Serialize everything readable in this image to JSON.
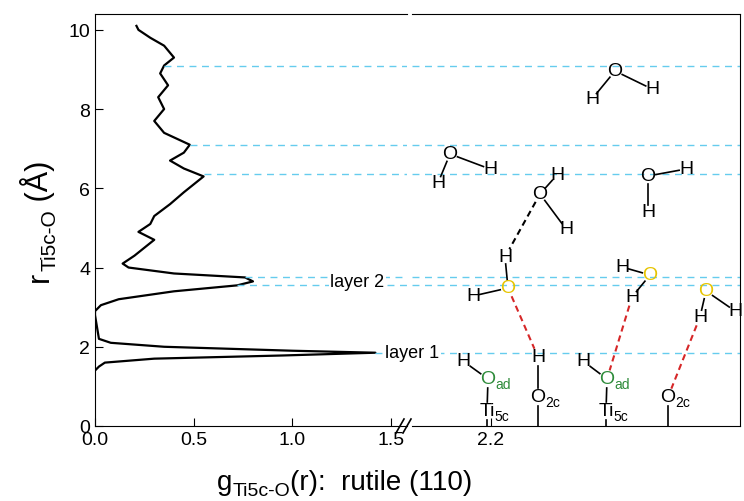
{
  "chart_data": [
    {
      "type": "line",
      "x": [
        0.0,
        0.02,
        0.05,
        0.3,
        0.95,
        1.42,
        1.0,
        0.35,
        0.08,
        0.02,
        0.01,
        0.0,
        0.0,
        0.03,
        0.12,
        0.4,
        0.72,
        0.8,
        0.76,
        0.4,
        0.17,
        0.14,
        0.2,
        0.25,
        0.3,
        0.22,
        0.28,
        0.3,
        0.38,
        0.45,
        0.55,
        0.45,
        0.38,
        0.45,
        0.48,
        0.35,
        0.3,
        0.35,
        0.32,
        0.37,
        0.33,
        0.35,
        0.4,
        0.35,
        0.28,
        0.22,
        0.21
      ],
      "values": [
        1.4,
        1.5,
        1.6,
        1.7,
        1.78,
        1.85,
        1.9,
        2.0,
        2.1,
        2.2,
        2.5,
        2.8,
        2.9,
        3.05,
        3.2,
        3.4,
        3.55,
        3.65,
        3.75,
        3.85,
        4.0,
        4.1,
        4.3,
        4.5,
        4.7,
        4.9,
        5.1,
        5.3,
        5.6,
        5.9,
        6.3,
        6.5,
        6.7,
        6.9,
        7.1,
        7.4,
        7.7,
        8.0,
        8.3,
        8.6,
        8.9,
        9.1,
        9.3,
        9.6,
        9.8,
        10.0,
        10.1
      ],
      "color": "#000000",
      "xlim": [
        0,
        1.58
      ],
      "xticks": [
        0.0,
        0.5,
        1.0,
        1.5
      ],
      "ylim": [
        0,
        10.4
      ],
      "yticks": [
        0,
        2,
        4,
        6,
        8,
        10
      ],
      "x_label": {
        "main": "g",
        "sub": "Ti5c-O",
        "rest": "(r):  rutile (110)"
      },
      "y_label": {
        "main": "r",
        "sub": "Ti5c-O",
        "rest": " (Å)"
      },
      "annotations": [
        {
          "text": "layer 1",
          "x": 1.47,
          "y": 1.85
        },
        {
          "text": "layer 2",
          "x": 1.19,
          "y": 3.65
        }
      ],
      "reference_lines": [
        {
          "y": 1.85,
          "x_from": 1.42
        },
        {
          "y": 3.55,
          "x_from": 0.72
        },
        {
          "y": 3.75,
          "x_from": 0.76
        },
        {
          "y": 6.35,
          "x_from": 0.55
        },
        {
          "y": 7.1,
          "x_from": 0.48
        },
        {
          "y": 9.1,
          "x_from": 0.35
        }
      ]
    },
    {
      "type": "line",
      "xlim": [
        1.8,
        3.46
      ],
      "xticks": [
        2.2
      ],
      "ylim": [
        0,
        10.4
      ],
      "tick_labels": "x"
    }
  ],
  "diagram": {
    "oxygen": "O",
    "hydrogen": "H",
    "adsorbed_oxygen": {
      "text": "O",
      "sub": "ad"
    },
    "surface_titanium": {
      "text": "Ti",
      "sub": "5c"
    },
    "bridging_oxygen": {
      "text": "O",
      "sub": "2c"
    }
  }
}
